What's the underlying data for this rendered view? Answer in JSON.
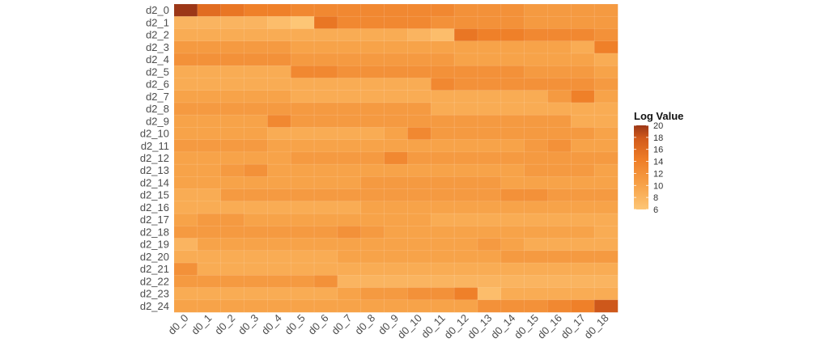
{
  "chart_data": {
    "type": "heatmap",
    "title": "",
    "xlabel": "",
    "ylabel": "",
    "x": [
      "d0_0",
      "d0_1",
      "d0_2",
      "d0_3",
      "d0_4",
      "d0_5",
      "d0_6",
      "d0_7",
      "d0_8",
      "d0_9",
      "d0_10",
      "d0_11",
      "d0_12",
      "d0_13",
      "d0_14",
      "d0_15",
      "d0_16",
      "d0_17",
      "d0_18"
    ],
    "y": [
      "d2_0",
      "d2_1",
      "d2_2",
      "d2_3",
      "d2_4",
      "d2_5",
      "d2_6",
      "d2_7",
      "d2_8",
      "d2_9",
      "d2_10",
      "d2_11",
      "d2_12",
      "d2_13",
      "d2_14",
      "d2_15",
      "d2_16",
      "d2_17",
      "d2_18",
      "d2_19",
      "d2_20",
      "d2_21",
      "d2_22",
      "d2_23",
      "d2_24"
    ],
    "values": [
      [
        20,
        16,
        15,
        14,
        14,
        13,
        13,
        13,
        13,
        13,
        13,
        13,
        12,
        12,
        12,
        11,
        11,
        11,
        11
      ],
      [
        8,
        8,
        8,
        8,
        7,
        6,
        15,
        13,
        13,
        13,
        13,
        12,
        12,
        12,
        12,
        11,
        11,
        11,
        11
      ],
      [
        9,
        9,
        9,
        9,
        9,
        9,
        9,
        9,
        9,
        9,
        8,
        7,
        15,
        14,
        14,
        13,
        13,
        13,
        12
      ],
      [
        11,
        11,
        11,
        11,
        11,
        10,
        10,
        10,
        10,
        10,
        10,
        10,
        10,
        10,
        10,
        10,
        10,
        9,
        14
      ],
      [
        12,
        12,
        12,
        12,
        12,
        11,
        11,
        11,
        11,
        11,
        11,
        11,
        10,
        10,
        10,
        10,
        10,
        10,
        9
      ],
      [
        9,
        9,
        9,
        9,
        9,
        13,
        13,
        12,
        12,
        12,
        12,
        12,
        12,
        12,
        12,
        11,
        11,
        11,
        10
      ],
      [
        9,
        9,
        9,
        9,
        9,
        9,
        9,
        9,
        9,
        9,
        9,
        13,
        12,
        12,
        12,
        12,
        12,
        12,
        11
      ],
      [
        10,
        10,
        10,
        10,
        10,
        9,
        9,
        9,
        9,
        9,
        9,
        9,
        9,
        9,
        9,
        9,
        11,
        14,
        10
      ],
      [
        11,
        11,
        11,
        11,
        11,
        11,
        11,
        11,
        11,
        11,
        11,
        9,
        9,
        9,
        9,
        9,
        9,
        9,
        9
      ],
      [
        10,
        10,
        10,
        10,
        13,
        11,
        11,
        11,
        11,
        11,
        11,
        11,
        11,
        11,
        11,
        11,
        11,
        9,
        9
      ],
      [
        10,
        10,
        10,
        10,
        9,
        9,
        9,
        9,
        9,
        10,
        13,
        11,
        11,
        11,
        11,
        11,
        11,
        11,
        10
      ],
      [
        11,
        11,
        11,
        11,
        10,
        10,
        10,
        10,
        10,
        10,
        10,
        10,
        10,
        10,
        10,
        11,
        12,
        10,
        10
      ],
      [
        10,
        10,
        10,
        10,
        10,
        11,
        11,
        11,
        11,
        13,
        11,
        11,
        11,
        11,
        11,
        11,
        11,
        11,
        11
      ],
      [
        10,
        10,
        11,
        12,
        10,
        10,
        10,
        10,
        10,
        10,
        10,
        10,
        10,
        10,
        10,
        11,
        11,
        11,
        10
      ],
      [
        10,
        10,
        10,
        10,
        10,
        10,
        10,
        10,
        11,
        11,
        11,
        11,
        11,
        11,
        10,
        10,
        10,
        10,
        10
      ],
      [
        9,
        9,
        11,
        11,
        11,
        11,
        11,
        11,
        11,
        11,
        11,
        11,
        11,
        11,
        12,
        12,
        11,
        11,
        11
      ],
      [
        9,
        9,
        9,
        9,
        9,
        9,
        9,
        9,
        10,
        10,
        10,
        10,
        10,
        10,
        10,
        10,
        10,
        10,
        10
      ],
      [
        10,
        11,
        11,
        10,
        10,
        10,
        10,
        10,
        10,
        10,
        10,
        9,
        9,
        9,
        9,
        9,
        9,
        9,
        9
      ],
      [
        11,
        11,
        11,
        11,
        11,
        11,
        11,
        12,
        11,
        10,
        10,
        10,
        10,
        10,
        10,
        10,
        10,
        10,
        9
      ],
      [
        8,
        10,
        10,
        10,
        10,
        10,
        10,
        10,
        10,
        10,
        10,
        10,
        10,
        11,
        10,
        9,
        9,
        9,
        9
      ],
      [
        9,
        9,
        9,
        9,
        9,
        9,
        9,
        10,
        10,
        10,
        10,
        10,
        10,
        10,
        11,
        11,
        11,
        11,
        11
      ],
      [
        12,
        9,
        9,
        9,
        9,
        9,
        9,
        9,
        9,
        9,
        9,
        9,
        9,
        9,
        9,
        9,
        9,
        9,
        9
      ],
      [
        11,
        11,
        11,
        11,
        11,
        11,
        12,
        8,
        8,
        8,
        8,
        8,
        8,
        8,
        8,
        8,
        8,
        8,
        8
      ],
      [
        9,
        9,
        9,
        9,
        9,
        9,
        9,
        10,
        11,
        11,
        12,
        12,
        14,
        7,
        9,
        9,
        9,
        9,
        9
      ],
      [
        10,
        10,
        10,
        10,
        10,
        10,
        10,
        10,
        10,
        10,
        10,
        10,
        10,
        12,
        12,
        12,
        13,
        14,
        18
      ]
    ],
    "zlim": [
      6,
      20
    ],
    "grid": false,
    "legend": {
      "title": "Log Value",
      "ticks": [
        "20",
        "18",
        "16",
        "14",
        "12",
        "10",
        "8",
        "6"
      ],
      "position": "right",
      "colors": {
        "low": "#fdc676",
        "high": "#9c3717"
      }
    }
  }
}
